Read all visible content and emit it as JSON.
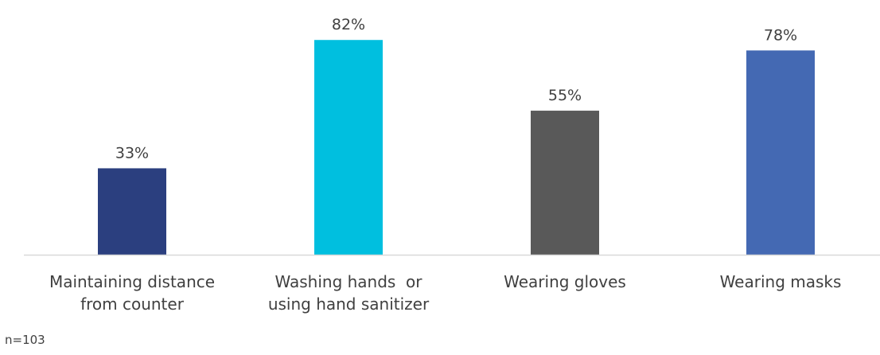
{
  "chart_data": {
    "type": "bar",
    "categories": [
      [
        "Maintaining distance",
        "from counter"
      ],
      [
        "Washing hands  or",
        "using hand sanitizer"
      ],
      [
        "Wearing gloves"
      ],
      [
        "Wearing masks"
      ]
    ],
    "values": [
      33,
      82,
      55,
      78
    ],
    "value_labels": [
      "33%",
      "82%",
      "55%",
      "78%"
    ],
    "bar_colors": [
      "#2b3f7f",
      "#00bfdf",
      "#595959",
      "#4469b3"
    ],
    "title": "",
    "xlabel": "",
    "ylabel": "",
    "ylim": [
      0,
      85
    ],
    "grid": false,
    "legend": "none",
    "axis_color": "#d9d9d9",
    "label_color": "#404040"
  },
  "footnote": "n=103"
}
